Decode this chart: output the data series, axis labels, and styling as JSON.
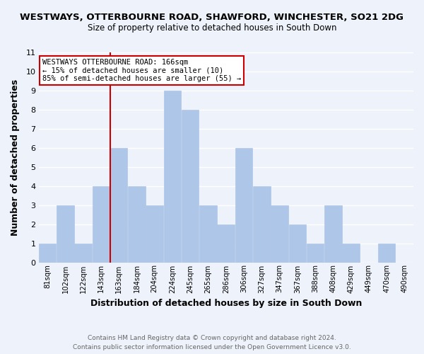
{
  "title": "WESTWAYS, OTTERBOURNE ROAD, SHAWFORD, WINCHESTER, SO21 2DG",
  "subtitle": "Size of property relative to detached houses in South Down",
  "xlabel": "Distribution of detached houses by size in South Down",
  "ylabel": "Number of detached properties",
  "footer_line1": "Contains HM Land Registry data © Crown copyright and database right 2024.",
  "footer_line2": "Contains public sector information licensed under the Open Government Licence v3.0.",
  "bin_labels": [
    "81sqm",
    "102sqm",
    "122sqm",
    "143sqm",
    "163sqm",
    "184sqm",
    "204sqm",
    "224sqm",
    "245sqm",
    "265sqm",
    "286sqm",
    "306sqm",
    "327sqm",
    "347sqm",
    "367sqm",
    "388sqm",
    "408sqm",
    "429sqm",
    "449sqm",
    "470sqm",
    "490sqm"
  ],
  "bar_heights": [
    1,
    3,
    1,
    4,
    6,
    4,
    3,
    9,
    8,
    3,
    2,
    6,
    4,
    3,
    2,
    1,
    3,
    1,
    0,
    1,
    0
  ],
  "bar_color": "#aec6e8",
  "bar_edge_color": "#aec6e8",
  "reference_line_color": "#cc0000",
  "reference_line_bin": 4,
  "annotation_title": "WESTWAYS OTTERBOURNE ROAD: 166sqm",
  "annotation_line1": "← 15% of detached houses are smaller (10)",
  "annotation_line2": "85% of semi-detached houses are larger (55) →",
  "ylim": [
    0,
    11
  ],
  "yticks": [
    0,
    1,
    2,
    3,
    4,
    5,
    6,
    7,
    8,
    9,
    10,
    11
  ],
  "background_color": "#eef2fb",
  "grid_color": "#ffffff",
  "annotation_box_facecolor": "#ffffff",
  "annotation_box_edgecolor": "#cc0000",
  "title_fontsize": 9.5,
  "subtitle_fontsize": 8.5,
  "xlabel_fontsize": 9,
  "ylabel_fontsize": 9,
  "footer_fontsize": 6.5,
  "footer_color": "#666666"
}
